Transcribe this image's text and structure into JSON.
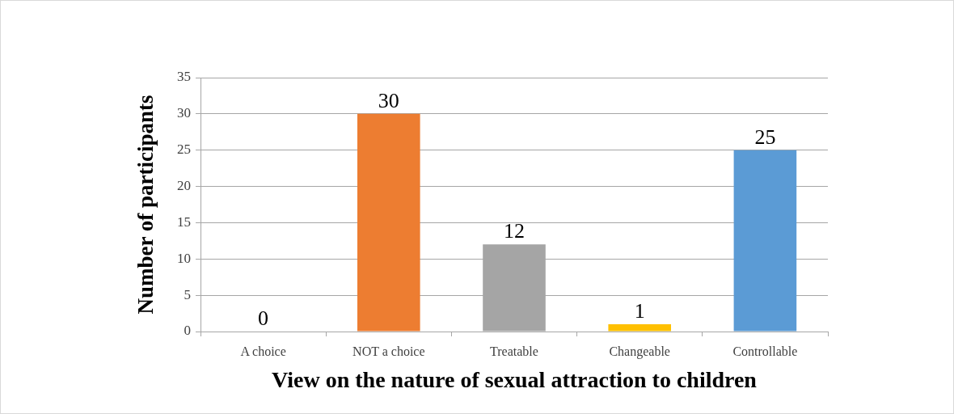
{
  "chart_data": {
    "type": "bar",
    "xlabel": "View on the nature of sexual attraction to children",
    "ylabel": "Number of participants",
    "categories": [
      "A choice",
      "NOT a choice",
      "Treatable",
      "Changeable",
      "Controllable"
    ],
    "values": [
      0,
      30,
      12,
      1,
      25
    ],
    "colors": [
      "#5b9bd5",
      "#ed7d31",
      "#a5a5a5",
      "#ffc000",
      "#5b9bd5"
    ],
    "ylim": [
      0,
      35
    ],
    "yticks": [
      0,
      5,
      10,
      15,
      20,
      25,
      30,
      35
    ],
    "grid": "y",
    "legend": false,
    "data_labels": true
  }
}
